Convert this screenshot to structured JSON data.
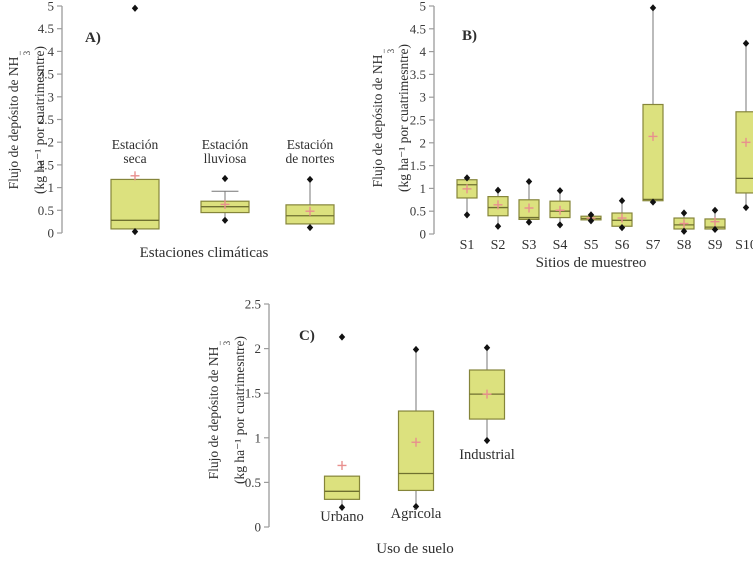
{
  "figure": {
    "background": "#ffffff"
  },
  "colors": {
    "box_fill": "#dce17e",
    "box_stroke": "#85853a",
    "median": "#6f7030",
    "whisker": "#777777",
    "point": "#111111",
    "mean_plus": "#e8908e",
    "axis": "#9c9c9c",
    "tick_text": "#3b3b3b",
    "label_text": "#2e2e2e"
  },
  "chart_data": [
    {
      "type": "boxplot",
      "panel_label": "A)",
      "xlabel": "Estaciones climáticas",
      "ylabel": {
        "prefix": "Flujo de depósito de NH",
        "sup": "−",
        "sub": "3",
        "line2": "(kg ha⁻¹ por cuatrimesntre)"
      },
      "ylim": [
        0,
        5
      ],
      "yticks": [
        0,
        0.5,
        1,
        1.5,
        2,
        2.5,
        3,
        3.5,
        4,
        4.5,
        5
      ],
      "grid": false,
      "categories": [
        [
          "Estación",
          "seca"
        ],
        [
          "Estación",
          "lluviosa"
        ],
        [
          "Estación",
          "de nortes"
        ]
      ],
      "boxes": [
        {
          "q1": 0.09,
          "median": 0.28,
          "q3": 1.18,
          "mean": 1.26,
          "whisker_low": 0.03,
          "whisker_high": null,
          "cap_high": false,
          "points": [
            4.95,
            0.03
          ]
        },
        {
          "q1": 0.45,
          "median": 0.58,
          "q3": 0.7,
          "mean": 0.63,
          "whisker_low": 0.28,
          "whisker_high": 0.92,
          "cap_high": true,
          "points": [
            1.2,
            0.28
          ]
        },
        {
          "q1": 0.2,
          "median": 0.38,
          "q3": 0.62,
          "mean": 0.48,
          "whisker_low": 0.12,
          "whisker_high": 1.18,
          "cap_high": false,
          "points": [
            1.18,
            0.12
          ]
        }
      ]
    },
    {
      "type": "boxplot",
      "panel_label": "B)",
      "xlabel": "Sitios de muestreo",
      "ylabel": {
        "prefix": "Flujo de depósito de NH",
        "sup": "−",
        "sub": "3",
        "line2": "(kg ha⁻¹ por cuatrimesntre)"
      },
      "ylim": [
        0,
        5
      ],
      "yticks": [
        0,
        0.5,
        1,
        1.5,
        2,
        2.5,
        3,
        3.5,
        4,
        4.5,
        5
      ],
      "grid": false,
      "categories": [
        "S1",
        "S2",
        "S3",
        "S4",
        "S5",
        "S6",
        "S7",
        "S8",
        "S9",
        "S10"
      ],
      "boxes": [
        {
          "q1": 0.79,
          "median": 1.08,
          "q3": 1.19,
          "mean": 0.99,
          "whisker_low": 0.42,
          "whisker_high": null,
          "cap_high": false,
          "points": [
            1.23,
            0.42
          ]
        },
        {
          "q1": 0.4,
          "median": 0.58,
          "q3": 0.82,
          "mean": 0.64,
          "whisker_low": 0.17,
          "whisker_high": 0.96,
          "cap_high": false,
          "points": [
            0.96,
            0.17
          ]
        },
        {
          "q1": 0.32,
          "median": 0.36,
          "q3": 0.75,
          "mean": 0.57,
          "whisker_low": 0.26,
          "whisker_high": 1.15,
          "cap_high": false,
          "points": [
            1.15,
            0.26
          ]
        },
        {
          "q1": 0.36,
          "median": 0.5,
          "q3": 0.72,
          "mean": 0.52,
          "whisker_low": 0.2,
          "whisker_high": 0.95,
          "cap_high": false,
          "points": [
            0.95,
            0.2
          ]
        },
        {
          "q1": 0.31,
          "median": 0.34,
          "q3": 0.39,
          "mean": 0.35,
          "whisker_low": 0.29,
          "whisker_high": 0.42,
          "cap_high": false,
          "points": [
            0.42,
            0.29
          ]
        },
        {
          "q1": 0.17,
          "median": 0.3,
          "q3": 0.46,
          "mean": 0.35,
          "whisker_low": 0.14,
          "whisker_high": 0.73,
          "cap_high": false,
          "points": [
            0.73,
            0.14
          ]
        },
        {
          "q1": 0.73,
          "median": 0.76,
          "q3": 2.84,
          "mean": 2.14,
          "whisker_low": 0.7,
          "whisker_high": 4.96,
          "cap_high": false,
          "points": [
            4.96,
            0.7
          ]
        },
        {
          "q1": 0.11,
          "median": 0.2,
          "q3": 0.35,
          "mean": 0.23,
          "whisker_low": 0.06,
          "whisker_high": 0.46,
          "cap_high": false,
          "points": [
            0.46,
            0.06
          ]
        },
        {
          "q1": 0.11,
          "median": 0.15,
          "q3": 0.33,
          "mean": 0.27,
          "whisker_low": 0.1,
          "whisker_high": 0.52,
          "cap_high": false,
          "points": [
            0.52,
            0.1
          ]
        },
        {
          "q1": 0.9,
          "median": 1.22,
          "q3": 2.68,
          "mean": 2.01,
          "whisker_low": 0.58,
          "whisker_high": 4.18,
          "cap_high": false,
          "points": [
            4.18,
            0.58
          ]
        }
      ]
    },
    {
      "type": "boxplot",
      "panel_label": "C)",
      "xlabel": "Uso de suelo",
      "ylabel": {
        "prefix": "Flujo de depósito de NH",
        "sup": "−",
        "sub": "3",
        "line2": "(kg ha⁻¹ por cuatrimesntre)"
      },
      "ylim": [
        0,
        2.5
      ],
      "yticks": [
        0,
        0.5,
        1,
        1.5,
        2,
        2.5
      ],
      "grid": false,
      "categories": [
        "Urbano",
        "Agrícola",
        "Industrial"
      ],
      "boxes": [
        {
          "q1": 0.31,
          "median": 0.4,
          "q3": 0.57,
          "mean": 0.69,
          "whisker_low": 0.22,
          "whisker_high": null,
          "cap_high": false,
          "points": [
            2.13,
            0.22
          ]
        },
        {
          "q1": 0.41,
          "median": 0.6,
          "q3": 1.3,
          "mean": 0.95,
          "whisker_low": 0.23,
          "whisker_high": 1.99,
          "cap_high": false,
          "points": [
            1.99,
            0.23
          ]
        },
        {
          "q1": 1.21,
          "median": 1.49,
          "q3": 1.76,
          "mean": 1.49,
          "whisker_low": 0.97,
          "whisker_high": 2.01,
          "cap_high": false,
          "points": [
            2.01,
            0.97
          ]
        }
      ]
    }
  ]
}
